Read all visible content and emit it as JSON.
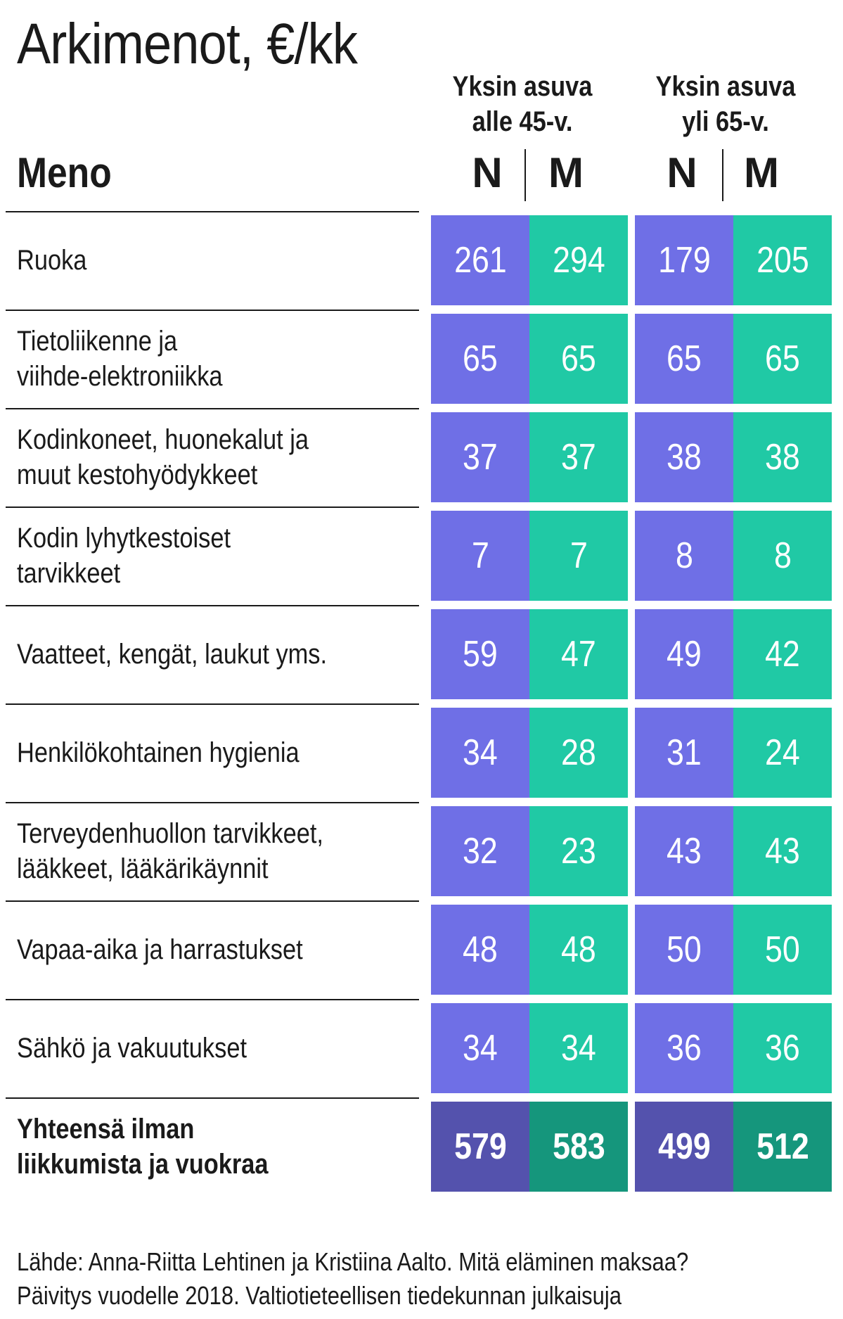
{
  "title": "Arkimenot, €/kk",
  "header": {
    "meno": "Meno",
    "groups": [
      {
        "line1": "Yksin asuva",
        "line2": "alle 45-v.",
        "n": "N",
        "m": "M"
      },
      {
        "line1": "Yksin asuva",
        "line2": "yli 65-v.",
        "n": "N",
        "m": "M"
      }
    ]
  },
  "colors": {
    "n": "#6f6fe6",
    "m": "#20c9a5",
    "n_total": "#5452ad",
    "m_total": "#15967c"
  },
  "chart_data": {
    "type": "table",
    "columns": [
      "Yksin asuva alle 45-v. N",
      "Yksin asuva alle 45-v. M",
      "Yksin asuva yli 65-v. N",
      "Yksin asuva yli 65-v. M"
    ],
    "rows": [
      {
        "label": "Ruoka",
        "values": [
          261,
          294,
          179,
          205
        ]
      },
      {
        "label": "Tietoliikenne ja\nviihde-elektroniikka",
        "values": [
          65,
          65,
          65,
          65
        ]
      },
      {
        "label": "Kodinkoneet, huonekalut ja\nmuut kestohyödykkeet",
        "values": [
          37,
          37,
          38,
          38
        ]
      },
      {
        "label": "Kodin lyhytkestoiset\ntarvikkeet",
        "values": [
          7,
          7,
          8,
          8
        ]
      },
      {
        "label": "Vaatteet, kengät, laukut yms.",
        "values": [
          59,
          47,
          49,
          42
        ]
      },
      {
        "label": "Henkilökohtainen hygienia",
        "values": [
          34,
          28,
          31,
          24
        ]
      },
      {
        "label": "Terveydenhuollon tarvikkeet,\nlääkkeet, lääkärikäynnit",
        "values": [
          32,
          23,
          43,
          43
        ]
      },
      {
        "label": "Vapaa-aika ja harrastukset",
        "values": [
          48,
          48,
          50,
          50
        ]
      },
      {
        "label": "Sähkö ja vakuutukset",
        "values": [
          34,
          34,
          36,
          36
        ]
      }
    ],
    "total": {
      "label": "Yhteensä ilman\nliikkumista ja vuokraa",
      "values": [
        579,
        583,
        499,
        512
      ]
    }
  },
  "source_line1": "Lähde: Anna-Riitta Lehtinen ja Kristiina Aalto. Mitä eläminen maksaa?",
  "source_line2": "Päivitys vuodelle 2018. Valtiotieteellisen tiedekunnan julkaisuja"
}
